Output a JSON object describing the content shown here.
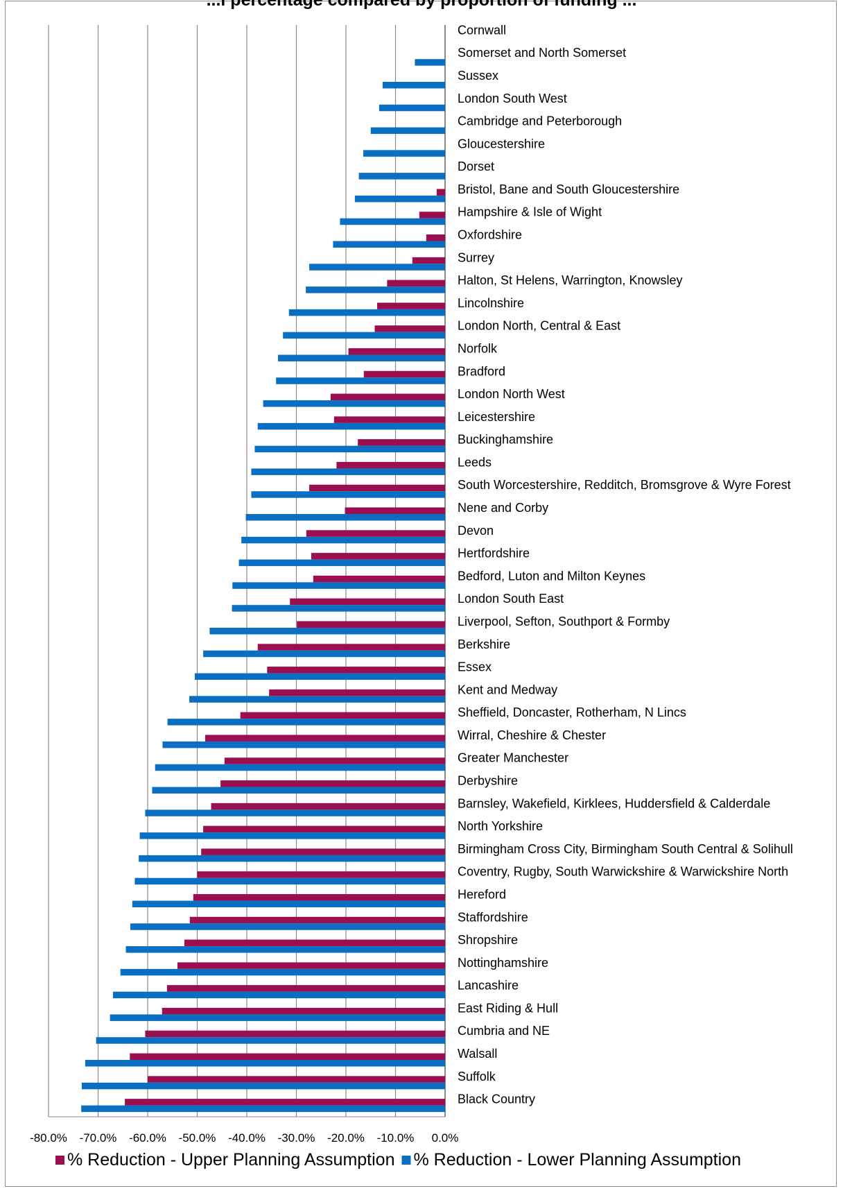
{
  "chart_data": {
    "type": "bar",
    "orientation": "horizontal",
    "title": "...l percentage compared by proportion of funding ...",
    "categories": [
      "Cornwall",
      "Somerset and North Somerset",
      "Sussex",
      "London South West",
      "Cambridge and Peterborough",
      "Gloucestershire",
      "Dorset",
      "Bristol, Bane and South Gloucestershire",
      "Hampshire & Isle of Wight",
      "Oxfordshire",
      "Surrey",
      "Halton, St Helens, Warrington, Knowsley",
      "Lincolnshire",
      "London North, Central & East",
      "Norfolk",
      "Bradford",
      "London North West",
      "Leicestershire",
      "Buckinghamshire",
      "Leeds",
      "South Worcestershire, Redditch, Bromsgrove & Wyre Forest",
      "Nene and Corby",
      "Devon",
      "Hertfordshire",
      "Bedford, Luton and Milton Keynes",
      "London South East",
      "Liverpool, Sefton, Southport & Formby",
      "Berkshire",
      "Essex",
      "Kent and Medway",
      "Sheffield, Doncaster, Rotherham, N Lincs",
      "Wirral, Cheshire & Chester",
      "Greater Manchester",
      "Derbyshire",
      "Barnsley, Wakefield, Kirklees, Huddersfield & Calderdale",
      "North Yorkshire",
      "Birmingham Cross City, Birmingham South Central & Solihull",
      "Coventry, Rugby, South Warwickshire & Warwickshire North",
      "Hereford",
      "Staffordshire",
      "Shropshire",
      "Nottinghamshire",
      "Lancashire",
      "East Riding & Hull",
      "Cumbria and NE",
      "Walsall",
      "Suffolk",
      "Black Country"
    ],
    "series": [
      {
        "name": "% Reduction - Upper Planning Assumption",
        "color": "#9b0e4f",
        "values": [
          0,
          0,
          0,
          0,
          0,
          0,
          0,
          -1.7,
          -5.2,
          -3.8,
          -6.6,
          -11.7,
          -13.7,
          -14.2,
          -19.5,
          -16.4,
          -23.1,
          -22.4,
          -17.6,
          -21.9,
          -27.4,
          -20.2,
          -28.0,
          -27.0,
          -26.6,
          -31.3,
          -29.9,
          -37.8,
          -35.9,
          -35.5,
          -41.3,
          -48.4,
          -44.5,
          -45.3,
          -47.2,
          -48.8,
          -49.2,
          -50.0,
          -50.8,
          -51.5,
          -52.6,
          -54.0,
          -56.1,
          -57.1,
          -60.5,
          -63.6,
          -60.0,
          -64.6
        ]
      },
      {
        "name": "% Reduction - Lower Planning Assumption",
        "color": "#0a6fc2",
        "values": [
          0,
          -6.1,
          -12.6,
          -13.3,
          -15.0,
          -16.5,
          -17.4,
          -18.2,
          -21.2,
          -22.6,
          -27.4,
          -28.1,
          -31.5,
          -32.7,
          -33.7,
          -34.1,
          -36.7,
          -37.8,
          -38.4,
          -39.1,
          -39.1,
          -40.2,
          -41.1,
          -41.6,
          -42.9,
          -43.0,
          -47.5,
          -48.8,
          -50.5,
          -51.6,
          -56.0,
          -57.0,
          -58.5,
          -59.1,
          -60.5,
          -61.6,
          -61.8,
          -62.6,
          -63.1,
          -63.5,
          -64.4,
          -65.5,
          -67.0,
          -67.6,
          -70.4,
          -72.6,
          -73.3,
          -73.4
        ]
      }
    ],
    "xaxis": {
      "min": -80,
      "max": 0,
      "ticks": [
        "-80.0%",
        "-70.0%",
        "-60.0%",
        "-50.0%",
        "-40.0%",
        "-30.0%",
        "-20.0%",
        "-10.0%",
        "0.0%"
      ]
    },
    "grid": true,
    "legend_position": "bottom"
  }
}
